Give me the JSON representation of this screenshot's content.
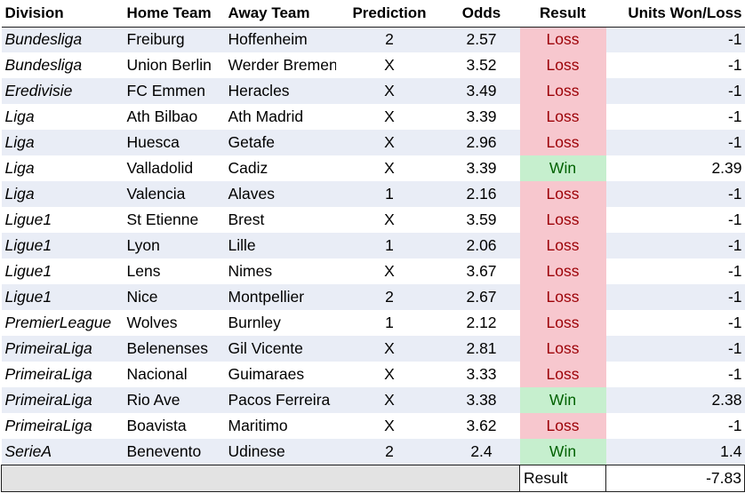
{
  "headers": {
    "division": "Division",
    "home_team": "Home Team",
    "away_team": "Away Team",
    "prediction": "Prediction",
    "odds": "Odds",
    "result": "Result",
    "units": "Units Won/Loss"
  },
  "rows": [
    {
      "division": "Bundesliga",
      "home": "Freiburg",
      "away": "Hoffenheim",
      "prediction": "2",
      "odds": "2.57",
      "result": "Loss",
      "units": "-1"
    },
    {
      "division": "Bundesliga",
      "home": "Union Berlin",
      "away": "Werder Bremen",
      "prediction": "X",
      "odds": "3.52",
      "result": "Loss",
      "units": "-1"
    },
    {
      "division": "Eredivisie",
      "home": "FC Emmen",
      "away": "Heracles",
      "prediction": "X",
      "odds": "3.49",
      "result": "Loss",
      "units": "-1"
    },
    {
      "division": "Liga",
      "home": "Ath Bilbao",
      "away": "Ath Madrid",
      "prediction": "X",
      "odds": "3.39",
      "result": "Loss",
      "units": "-1"
    },
    {
      "division": "Liga",
      "home": "Huesca",
      "away": "Getafe",
      "prediction": "X",
      "odds": "2.96",
      "result": "Loss",
      "units": "-1"
    },
    {
      "division": "Liga",
      "home": "Valladolid",
      "away": "Cadiz",
      "prediction": "X",
      "odds": "3.39",
      "result": "Win",
      "units": "2.39"
    },
    {
      "division": "Liga",
      "home": "Valencia",
      "away": "Alaves",
      "prediction": "1",
      "odds": "2.16",
      "result": "Loss",
      "units": "-1"
    },
    {
      "division": "Ligue1",
      "home": "St Etienne",
      "away": "Brest",
      "prediction": "X",
      "odds": "3.59",
      "result": "Loss",
      "units": "-1"
    },
    {
      "division": "Ligue1",
      "home": "Lyon",
      "away": "Lille",
      "prediction": "1",
      "odds": "2.06",
      "result": "Loss",
      "units": "-1"
    },
    {
      "division": "Ligue1",
      "home": "Lens",
      "away": "Nimes",
      "prediction": "X",
      "odds": "3.67",
      "result": "Loss",
      "units": "-1"
    },
    {
      "division": "Ligue1",
      "home": "Nice",
      "away": "Montpellier",
      "prediction": "2",
      "odds": "2.67",
      "result": "Loss",
      "units": "-1"
    },
    {
      "division": "PremierLeague",
      "home": "Wolves",
      "away": "Burnley",
      "prediction": "1",
      "odds": "2.12",
      "result": "Loss",
      "units": "-1"
    },
    {
      "division": "PrimeiraLiga",
      "home": "Belenenses",
      "away": "Gil Vicente",
      "prediction": "X",
      "odds": "2.81",
      "result": "Loss",
      "units": "-1"
    },
    {
      "division": "PrimeiraLiga",
      "home": "Nacional",
      "away": "Guimaraes",
      "prediction": "X",
      "odds": "3.33",
      "result": "Loss",
      "units": "-1"
    },
    {
      "division": "PrimeiraLiga",
      "home": "Rio Ave",
      "away": "Pacos Ferreira",
      "prediction": "X",
      "odds": "3.38",
      "result": "Win",
      "units": "2.38"
    },
    {
      "division": "PrimeiraLiga",
      "home": "Boavista",
      "away": "Maritimo",
      "prediction": "X",
      "odds": "3.62",
      "result": "Loss",
      "units": "-1"
    },
    {
      "division": "SerieA",
      "home": "Benevento",
      "away": "Udinese",
      "prediction": "2",
      "odds": "2.4",
      "result": "Win",
      "units": "1.4"
    }
  ],
  "total": {
    "label": "Result",
    "value": "-7.83"
  },
  "colors": {
    "band": "#e9edf6",
    "loss_fill": "#f7c7ce",
    "loss_text": "#9c0006",
    "win_fill": "#c6efce",
    "win_text": "#006100",
    "total_row_fill": "#e3e3e3"
  }
}
